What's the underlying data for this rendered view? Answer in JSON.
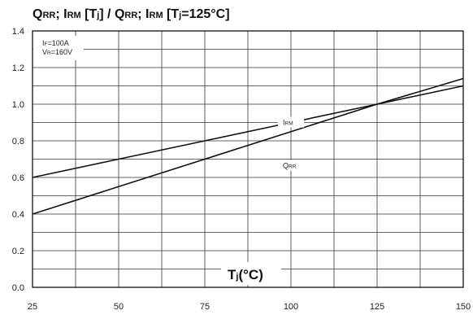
{
  "chart_data": {
    "type": "line",
    "title_parts": [
      {
        "t": "Q",
        "sub": false
      },
      {
        "t": "RR",
        "sub": true
      },
      {
        "t": "; I",
        "sub": false
      },
      {
        "t": "RM",
        "sub": true
      },
      {
        "t": " [T",
        "sub": false
      },
      {
        "t": "j",
        "sub": true
      },
      {
        "t": "] / Q",
        "sub": false
      },
      {
        "t": "RR",
        "sub": true
      },
      {
        "t": "; I",
        "sub": false
      },
      {
        "t": "RM",
        "sub": true
      },
      {
        "t": " [T",
        "sub": false
      },
      {
        "t": "j",
        "sub": true
      },
      {
        "t": "=125°C]",
        "sub": false
      }
    ],
    "xlabel_parts": [
      {
        "t": "T",
        "sub": false
      },
      {
        "t": "j",
        "sub": true
      },
      {
        "t": "(°C)",
        "sub": false
      }
    ],
    "conditions": [
      [
        {
          "t": "I",
          "sub": false
        },
        {
          "t": "F",
          "sub": true
        },
        {
          "t": "=100A",
          "sub": false
        }
      ],
      [
        {
          "t": "V",
          "sub": false
        },
        {
          "t": "R",
          "sub": true
        },
        {
          "t": "=160V",
          "sub": false
        }
      ]
    ],
    "xlim": [
      25,
      150
    ],
    "ylim": [
      0,
      1.4
    ],
    "x_ticks": [
      25,
      50,
      75,
      100,
      125,
      150
    ],
    "y_ticks": [
      "0.0",
      "0.2",
      "0.4",
      "0.6",
      "0.8",
      "1.0",
      "1.2",
      "1.4"
    ],
    "grid": true,
    "series": [
      {
        "name_parts": [
          {
            "t": "I",
            "sub": false
          },
          {
            "t": "RM",
            "sub": true
          }
        ],
        "label_at": [
          100,
          0.895
        ],
        "x": [
          25,
          50,
          75,
          100,
          125,
          150
        ],
        "y": [
          0.6,
          0.7,
          0.8,
          0.9,
          1.0,
          1.1
        ]
      },
      {
        "name_parts": [
          {
            "t": "Q",
            "sub": false
          },
          {
            "t": "RR",
            "sub": true
          }
        ],
        "label_at": [
          100,
          0.66
        ],
        "x": [
          25,
          50,
          75,
          100,
          125,
          150
        ],
        "y": [
          0.4,
          0.55,
          0.7,
          0.85,
          1.0,
          1.14
        ]
      }
    ],
    "colors": {
      "line": "#111111",
      "grid": "#333333",
      "axis": "#000000"
    }
  }
}
